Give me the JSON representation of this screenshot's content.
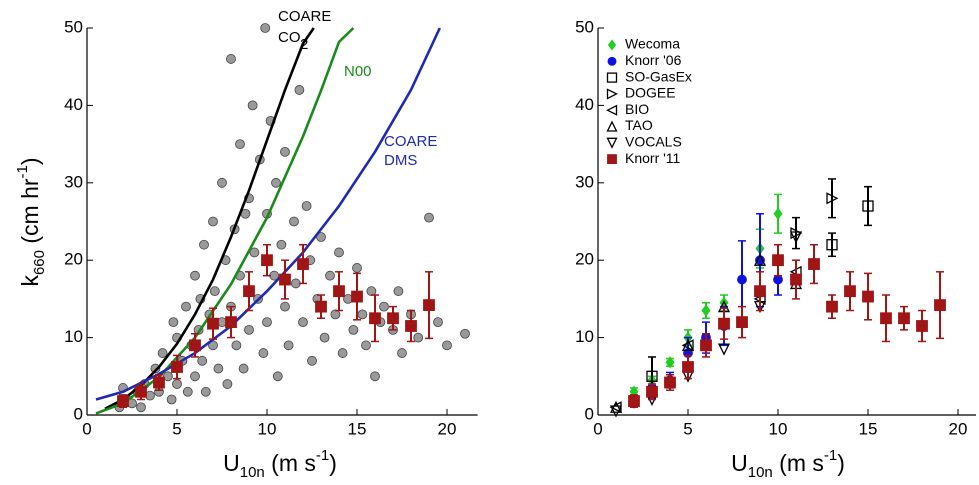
{
  "chart_data": [
    {
      "type": "scatter",
      "x_label": {
        "main": "U",
        "sub": "10n",
        "unit": " (m s",
        "sup": "-1",
        "close": ")"
      },
      "y_label": {
        "main": "k",
        "sub": "660",
        "unit": " (cm hr",
        "sup": "-1",
        "close": ")"
      },
      "xlim": [
        0,
        21.7
      ],
      "ylim": [
        0,
        50
      ],
      "xticks": [
        0,
        5,
        10,
        15,
        20
      ],
      "yticks": [
        0,
        10,
        20,
        30,
        40,
        50
      ],
      "annotations": [
        "COARE",
        "CO",
        "2",
        "N00",
        "COARE",
        "DMS"
      ],
      "series": [
        {
          "style": "points",
          "color": "#9a9a9a",
          "marker": "circle",
          "filled": true,
          "x": [
            1.8,
            2.2,
            2.5,
            2.8,
            3,
            3.2,
            3.5,
            3.8,
            4,
            4.2,
            4.5,
            4.7,
            5,
            5,
            5.3,
            5.5,
            5.6,
            5.8,
            6,
            6,
            6.2,
            6.4,
            6.5,
            6.6,
            6.8,
            7,
            7,
            7.1,
            7.3,
            7.5,
            7.5,
            7.7,
            7.8,
            8,
            8,
            8.2,
            8.3,
            8.5,
            8.5,
            8.7,
            9,
            9,
            9.2,
            9.3,
            9.5,
            9.6,
            9.8,
            10,
            10,
            10.2,
            10.4,
            10.5,
            10.6,
            10.8,
            11,
            11,
            11.2,
            11.5,
            11.6,
            11.8,
            12,
            12.2,
            12.4,
            12.5,
            12.8,
            13,
            13.2,
            13.5,
            13.8,
            14,
            14.2,
            14.5,
            14.8,
            15,
            15.3,
            15.5,
            15.8,
            16,
            16.3,
            16.5,
            17,
            17.3,
            17.5,
            18,
            18.4,
            19,
            19.5,
            20,
            21,
            2,
            4.8,
            6.3,
            8.8,
            9.9
          ],
          "values": [
            1,
            2,
            1.5,
            3,
            1,
            4,
            2.5,
            6,
            3,
            8,
            5,
            2,
            10,
            4,
            7,
            14,
            3,
            9,
            5,
            18,
            11,
            7,
            22,
            3,
            13,
            9,
            25,
            16,
            6,
            30,
            12,
            20,
            4,
            46,
            14,
            24,
            9,
            35,
            18,
            6,
            28,
            11,
            40,
            21,
            15,
            33,
            8,
            26,
            12,
            38,
            18,
            30,
            5,
            22,
            14,
            34,
            9,
            25,
            17,
            42,
            12,
            27,
            20,
            7,
            15,
            23,
            10,
            18,
            13,
            21,
            8,
            15,
            11,
            19,
            13,
            9,
            16,
            5,
            12,
            14,
            11,
            16,
            8,
            13,
            10,
            25.5,
            12,
            9,
            10.5,
            3.5,
            12,
            15,
            26,
            50
          ]
        },
        {
          "style": "line",
          "color": "#000000",
          "x": [
            1,
            2,
            3,
            4,
            5,
            6,
            7,
            8,
            9,
            10,
            11,
            12,
            12.6
          ],
          "values": [
            0.8,
            2,
            3.8,
            6.2,
            9.2,
            13,
            17.5,
            23,
            29,
            35.5,
            42,
            48,
            50
          ]
        },
        {
          "style": "line",
          "color": "#1a8a1a",
          "x": [
            0.5,
            2,
            4,
            6,
            8,
            10,
            12,
            13,
            14,
            14.8
          ],
          "values": [
            0.2,
            1.5,
            4.9,
            10,
            16.9,
            25.5,
            36,
            41.9,
            48.2,
            50
          ]
        },
        {
          "style": "line",
          "color": "#1f2ab0",
          "x": [
            0.5,
            2,
            4,
            6,
            8,
            10,
            12,
            14,
            16,
            18,
            19.6
          ],
          "values": [
            2,
            3,
            5.3,
            8,
            11.5,
            16,
            21,
            27,
            34,
            42,
            50
          ]
        },
        {
          "style": "points",
          "color": "#a01515",
          "marker": "square",
          "filled": true,
          "x": [
            2,
            3,
            4,
            5,
            6,
            7,
            8,
            9,
            10,
            11,
            12,
            13,
            14,
            15,
            16,
            17,
            18,
            19
          ],
          "values": [
            1.8,
            3,
            4.2,
            6.2,
            9,
            11.8,
            12,
            16,
            20,
            17.5,
            19.5,
            14,
            16,
            15.3,
            12.5,
            12.5,
            11.5,
            14.2
          ],
          "errors": [
            0.8,
            1,
            1,
            1.5,
            1.5,
            2,
            2,
            2.5,
            2,
            2.5,
            2.5,
            1.5,
            2.5,
            3,
            3,
            1.5,
            2,
            4.3
          ]
        }
      ]
    },
    {
      "type": "scatter",
      "x_label": {
        "main": "U",
        "sub": "10n",
        "unit": " (m s",
        "sup": "-1",
        "close": ")"
      },
      "xlim": [
        0,
        21
      ],
      "ylim": [
        0,
        50
      ],
      "xticks": [
        0,
        5,
        10,
        15,
        20
      ],
      "yticks": [
        0,
        10,
        20,
        30,
        40,
        50
      ],
      "series": [
        {
          "name": "Wecoma",
          "color": "#22cc22",
          "marker": "diamond",
          "filled": true,
          "x": [
            2,
            3,
            4,
            5,
            6,
            7,
            9,
            10
          ],
          "values": [
            3,
            4.5,
            6.8,
            10,
            13.5,
            14.5,
            21.5,
            26
          ],
          "errors": [
            0.5,
            0.5,
            0.5,
            1,
            1,
            1,
            2.5,
            2.5
          ]
        },
        {
          "name": "Knorr '06",
          "color": "#1010e0",
          "marker": "circle",
          "filled": true,
          "x": [
            2,
            3,
            4,
            5,
            6,
            7,
            8,
            9,
            10
          ],
          "values": [
            1.5,
            3,
            4.5,
            8,
            10,
            11.5,
            17.5,
            20,
            17.5
          ],
          "errors": [
            0.5,
            0.8,
            1,
            2,
            2,
            2.5,
            5,
            6,
            2
          ]
        },
        {
          "name": "SO-GasEx",
          "color": "#000000",
          "marker": "square",
          "filled": false,
          "x": [
            3,
            13,
            15
          ],
          "values": [
            5,
            22,
            27
          ],
          "errors": [
            2.5,
            1.5,
            2.5
          ]
        },
        {
          "name": "DOGEE",
          "color": "#000000",
          "marker": "tri-right",
          "filled": false,
          "x": [
            11,
            13
          ],
          "values": [
            23.5,
            28
          ],
          "errors": [
            2,
            2.5
          ]
        },
        {
          "name": "BIO",
          "color": "#000000",
          "marker": "tri-left",
          "filled": false,
          "x": [
            1,
            5,
            9,
            11
          ],
          "values": [
            1,
            9,
            15,
            18.5
          ]
        },
        {
          "name": "TAO",
          "color": "#000000",
          "marker": "tri-up",
          "filled": false,
          "x": [
            1,
            3,
            5,
            7,
            9,
            11
          ],
          "values": [
            1,
            3,
            9,
            14,
            20,
            17
          ]
        },
        {
          "name": "VOCALS",
          "color": "#000000",
          "marker": "tri-down",
          "filled": false,
          "x": [
            1,
            3,
            5,
            7,
            9,
            11
          ],
          "values": [
            0.5,
            2,
            5,
            8.5,
            14,
            23
          ]
        },
        {
          "name": "Knorr '11",
          "color": "#a01515",
          "marker": "square",
          "filled": true,
          "x": [
            2,
            3,
            4,
            5,
            6,
            7,
            8,
            9,
            10,
            11,
            12,
            13,
            14,
            15,
            16,
            17,
            18,
            19
          ],
          "values": [
            1.8,
            3,
            4.2,
            6.2,
            9,
            11.8,
            12,
            16,
            20,
            17.5,
            19.5,
            14,
            16,
            15.3,
            12.5,
            12.5,
            11.5,
            14.2
          ],
          "errors": [
            0.8,
            1,
            1,
            1.5,
            1.5,
            2,
            2,
            2.5,
            2,
            2.5,
            2.5,
            1.5,
            2.5,
            3,
            3,
            1.5,
            2,
            4.3
          ]
        }
      ]
    }
  ]
}
